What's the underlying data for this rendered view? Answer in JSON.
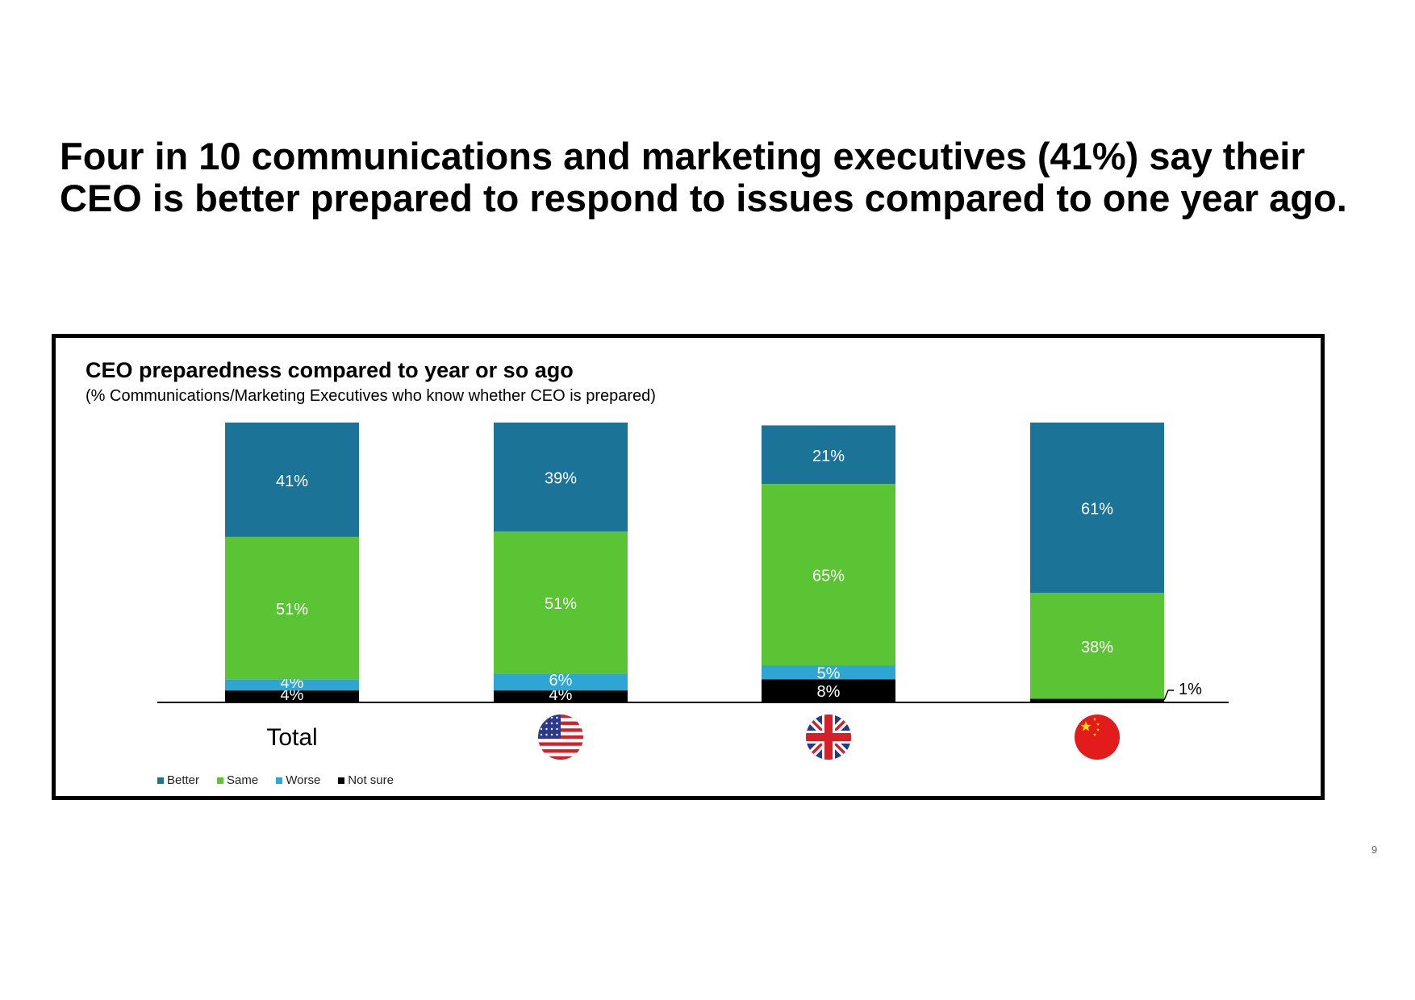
{
  "headline": {
    "line1": "Four in 10 communications and marketing executives (41%) say their",
    "line2": "CEO is better prepared to respond to issues compared to one year ago."
  },
  "page_number": "9",
  "colors": {
    "Better": "#1b7498",
    "Same": "#5ac434",
    "Worse": "#2ea6d4",
    "Not sure": "#000000"
  },
  "chart_data": {
    "type": "bar",
    "stacked": true,
    "title": "CEO preparedness compared to year or so ago",
    "subtitle": "(% Communications/Marketing Executives who know whether CEO is prepared)",
    "categories": [
      "Total",
      "US",
      "UK",
      "China"
    ],
    "category_labels": [
      "Total",
      "",
      "",
      ""
    ],
    "category_icons": [
      "",
      "us-flag-icon",
      "uk-flag-icon",
      "china-flag-icon"
    ],
    "series": [
      {
        "name": "Not sure",
        "values": [
          4,
          4,
          8,
          1
        ],
        "labels": [
          "4%",
          "4%",
          "8%",
          "1%"
        ]
      },
      {
        "name": "Worse",
        "values": [
          4,
          6,
          5,
          0
        ],
        "labels": [
          "4%",
          "6%",
          "5%",
          ""
        ]
      },
      {
        "name": "Same",
        "values": [
          51,
          51,
          65,
          38
        ],
        "labels": [
          "51%",
          "51%",
          "65%",
          "38%"
        ]
      },
      {
        "name": "Better",
        "values": [
          41,
          39,
          21,
          61
        ],
        "labels": [
          "41%",
          "39%",
          "21%",
          "61%"
        ]
      }
    ],
    "legend": [
      "Better",
      "Same",
      "Worse",
      "Not sure"
    ],
    "legend_position": "bottom-left",
    "ylim": [
      0,
      100
    ],
    "xlabel": "",
    "ylabel": ""
  }
}
